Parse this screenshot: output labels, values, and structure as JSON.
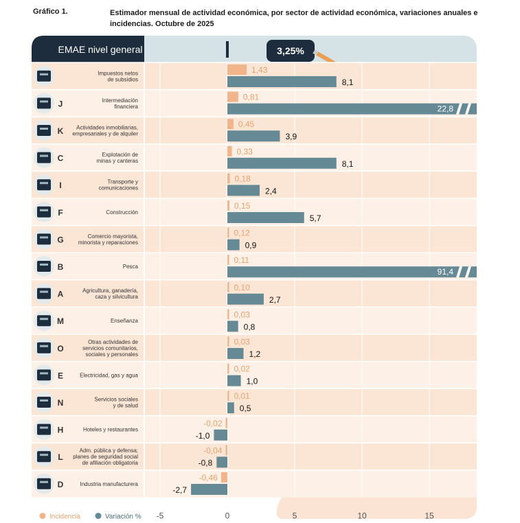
{
  "figure_number": "Gráfico 1.",
  "figure_title": "Estimador mensual de actividad económica, por sector de actividad económica, variaciones anuales e incidencias. Octubre de 2025",
  "colors": {
    "incidence": "#f2b48a",
    "variation": "#668a95",
    "header_dark": "#1e2d3d",
    "header_light": "#d5e3e6",
    "row_even": "#fbe6d6",
    "row_odd": "#fdf0e6",
    "axis_bg": "#fbe4d3",
    "incidence_text": "#e8a16c"
  },
  "chart_data": {
    "type": "bar",
    "title": "EMAE nivel general",
    "headline_value": "3,25%",
    "xlim": [
      -5,
      18.5
    ],
    "x_ticks": [
      -5,
      0,
      5,
      10,
      15
    ],
    "x_tick_labels": [
      "-5",
      "0",
      "5",
      "10",
      "15"
    ],
    "legend": [
      "Incidencia",
      "Variación %"
    ],
    "legend_position": "bottom-left",
    "grid": true,
    "categories": [
      {
        "code": "",
        "name": [
          "Impuestos netos",
          "de subsidios"
        ],
        "incidencia": 1.43,
        "incidencia_label": "1,43",
        "variacion": 8.1,
        "variacion_label": "8,1",
        "icon": "tax-icon"
      },
      {
        "code": "J",
        "name": [
          "Intermediación",
          "financiera"
        ],
        "incidencia": 0.81,
        "incidencia_label": "0,81",
        "variacion": 22.8,
        "variacion_label": "22,8",
        "icon": "bank-icon",
        "truncated": true
      },
      {
        "code": "K",
        "name": [
          "Actividades inmobiliarias,",
          "empresariales y de alquiler"
        ],
        "incidencia": 0.45,
        "incidencia_label": "0,45",
        "variacion": 3.9,
        "variacion_label": "3,9",
        "icon": "real-estate-icon"
      },
      {
        "code": "C",
        "name": [
          "Explotación de",
          "minas y canteras"
        ],
        "incidencia": 0.33,
        "incidencia_label": "0,33",
        "variacion": 8.1,
        "variacion_label": "8,1",
        "icon": "mining-icon"
      },
      {
        "code": "I",
        "name": [
          "Transporte y",
          "comunicaciones"
        ],
        "incidencia": 0.18,
        "incidencia_label": "0,18",
        "variacion": 2.4,
        "variacion_label": "2,4",
        "icon": "transport-icon"
      },
      {
        "code": "F",
        "name": [
          "Construcción"
        ],
        "incidencia": 0.15,
        "incidencia_label": "0,15",
        "variacion": 5.7,
        "variacion_label": "5,7",
        "icon": "construction-icon"
      },
      {
        "code": "G",
        "name": [
          "Comercio mayorista,",
          "minorista y reparaciones"
        ],
        "incidencia": 0.12,
        "incidencia_label": "0,12",
        "variacion": 0.9,
        "variacion_label": "0,9",
        "icon": "commerce-icon"
      },
      {
        "code": "B",
        "name": [
          "Pesca"
        ],
        "incidencia": 0.11,
        "incidencia_label": "0,11",
        "variacion": 91.4,
        "variacion_label": "91,4",
        "icon": "fishing-icon",
        "truncated": true
      },
      {
        "code": "A",
        "name": [
          "Agricultura, ganadería,",
          "caza y silvicultura"
        ],
        "incidencia": 0.1,
        "incidencia_label": "0,10",
        "variacion": 2.7,
        "variacion_label": "2,7",
        "icon": "agriculture-icon"
      },
      {
        "code": "M",
        "name": [
          "Enseñanza"
        ],
        "incidencia": 0.03,
        "incidencia_label": "0,03",
        "variacion": 0.8,
        "variacion_label": "0,8",
        "icon": "education-icon"
      },
      {
        "code": "O",
        "name": [
          "Otras actividades de",
          "servicios comunitarios,",
          "sociales y personales"
        ],
        "incidencia": 0.03,
        "incidencia_label": "0,03",
        "variacion": 1.2,
        "variacion_label": "1,2",
        "icon": "community-services-icon"
      },
      {
        "code": "E",
        "name": [
          "Electricidad, gas y agua"
        ],
        "incidencia": 0.02,
        "incidencia_label": "0,02",
        "variacion": 1.0,
        "variacion_label": "1,0",
        "icon": "utilities-icon"
      },
      {
        "code": "N",
        "name": [
          "Servicios sociales",
          "y de salud"
        ],
        "incidencia": 0.01,
        "incidencia_label": "0,01",
        "variacion": 0.5,
        "variacion_label": "0,5",
        "icon": "health-icon"
      },
      {
        "code": "H",
        "name": [
          "Hoteles y restaurantes"
        ],
        "incidencia": -0.02,
        "incidencia_label": "-0,02",
        "variacion": -1.0,
        "variacion_label": "-1,0",
        "icon": "hotel-icon"
      },
      {
        "code": "L",
        "name": [
          "Adm. pública y defensa;",
          "planes de seguridad social",
          "de afiliación obligatoria"
        ],
        "incidencia": -0.04,
        "incidencia_label": "-0,04",
        "variacion": -0.8,
        "variacion_label": "-0,8",
        "icon": "government-icon"
      },
      {
        "code": "D",
        "name": [
          "Industria manufacturera"
        ],
        "incidencia": -0.46,
        "incidencia_label": "-0,46",
        "variacion": -2.7,
        "variacion_label": "-2,7",
        "icon": "industry-icon"
      }
    ]
  }
}
